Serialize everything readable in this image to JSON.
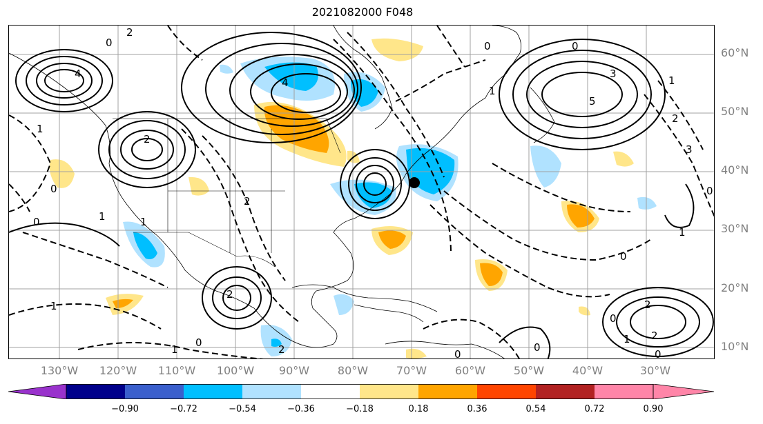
{
  "title": "2021082000 F048",
  "lat_labels": [
    "60°N",
    "50°N",
    "40°N",
    "30°N",
    "20°N",
    "10°N"
  ],
  "lon_labels": [
    "130°W",
    "120°W",
    "110°W",
    "100°W",
    "90°W",
    "80°W",
    "70°W",
    "60°W",
    "50°W",
    "40°W",
    "30°W"
  ],
  "colorbar": {
    "ticks": [
      "−0.90",
      "−0.72",
      "−0.54",
      "−0.36",
      "−0.18",
      "0.18",
      "0.36",
      "0.54",
      "0.72",
      "0.90"
    ],
    "colors": [
      "#9932cc",
      "#00008b",
      "#3a5fcd",
      "#00bfff",
      "#b0e2ff",
      "#ffffff",
      "#ffe68a",
      "#ffa500",
      "#ff4500",
      "#b22222",
      "#ff85a8"
    ]
  },
  "contour_labels": [
    "2",
    "0",
    "4",
    "0",
    "1",
    "2",
    "1",
    "0",
    "2",
    "4",
    "0",
    "1",
    "3",
    "5",
    "1",
    "2",
    "3",
    "2",
    "1",
    "2",
    "0",
    "2",
    "0",
    "0",
    "1",
    "0",
    "2",
    "0",
    "1",
    "1",
    "0",
    "1",
    "0",
    "0"
  ],
  "marker": "black-dot"
}
